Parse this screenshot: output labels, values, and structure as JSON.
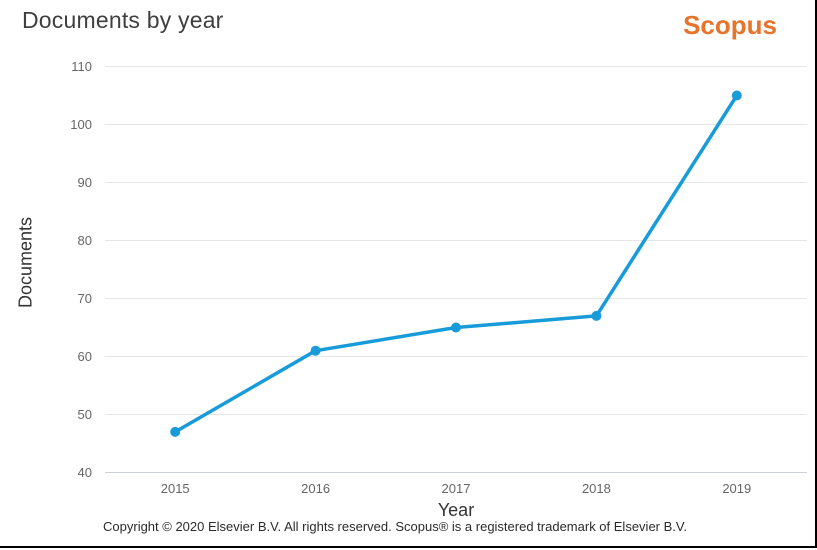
{
  "header": {
    "title": "Documents by year",
    "logo_text": "Scopus"
  },
  "chart_data": {
    "type": "line",
    "categories": [
      "2015",
      "2016",
      "2017",
      "2018",
      "2019"
    ],
    "series": [
      {
        "name": "Documents",
        "values": [
          47,
          61,
          65,
          67,
          105
        ]
      }
    ],
    "title": "Documents by year",
    "xlabel": "Year",
    "ylabel": "Documents",
    "ylim": [
      40,
      110
    ],
    "ytick_step": 10,
    "grid": true,
    "legend": "none",
    "line_color": "#189cd9",
    "marker": "circle"
  },
  "footer": {
    "copyright": "Copyright © 2020 Elsevier B.V. All rights reserved. Scopus® is a registered trademark of Elsevier B.V."
  },
  "colors": {
    "accent_orange": "#e8732a",
    "series_line": "#189cd9",
    "grid_line": "#e6e6e6",
    "axis_line": "#ccd1d9",
    "tick_text": "#666666",
    "title_text": "#3f3f3f"
  }
}
